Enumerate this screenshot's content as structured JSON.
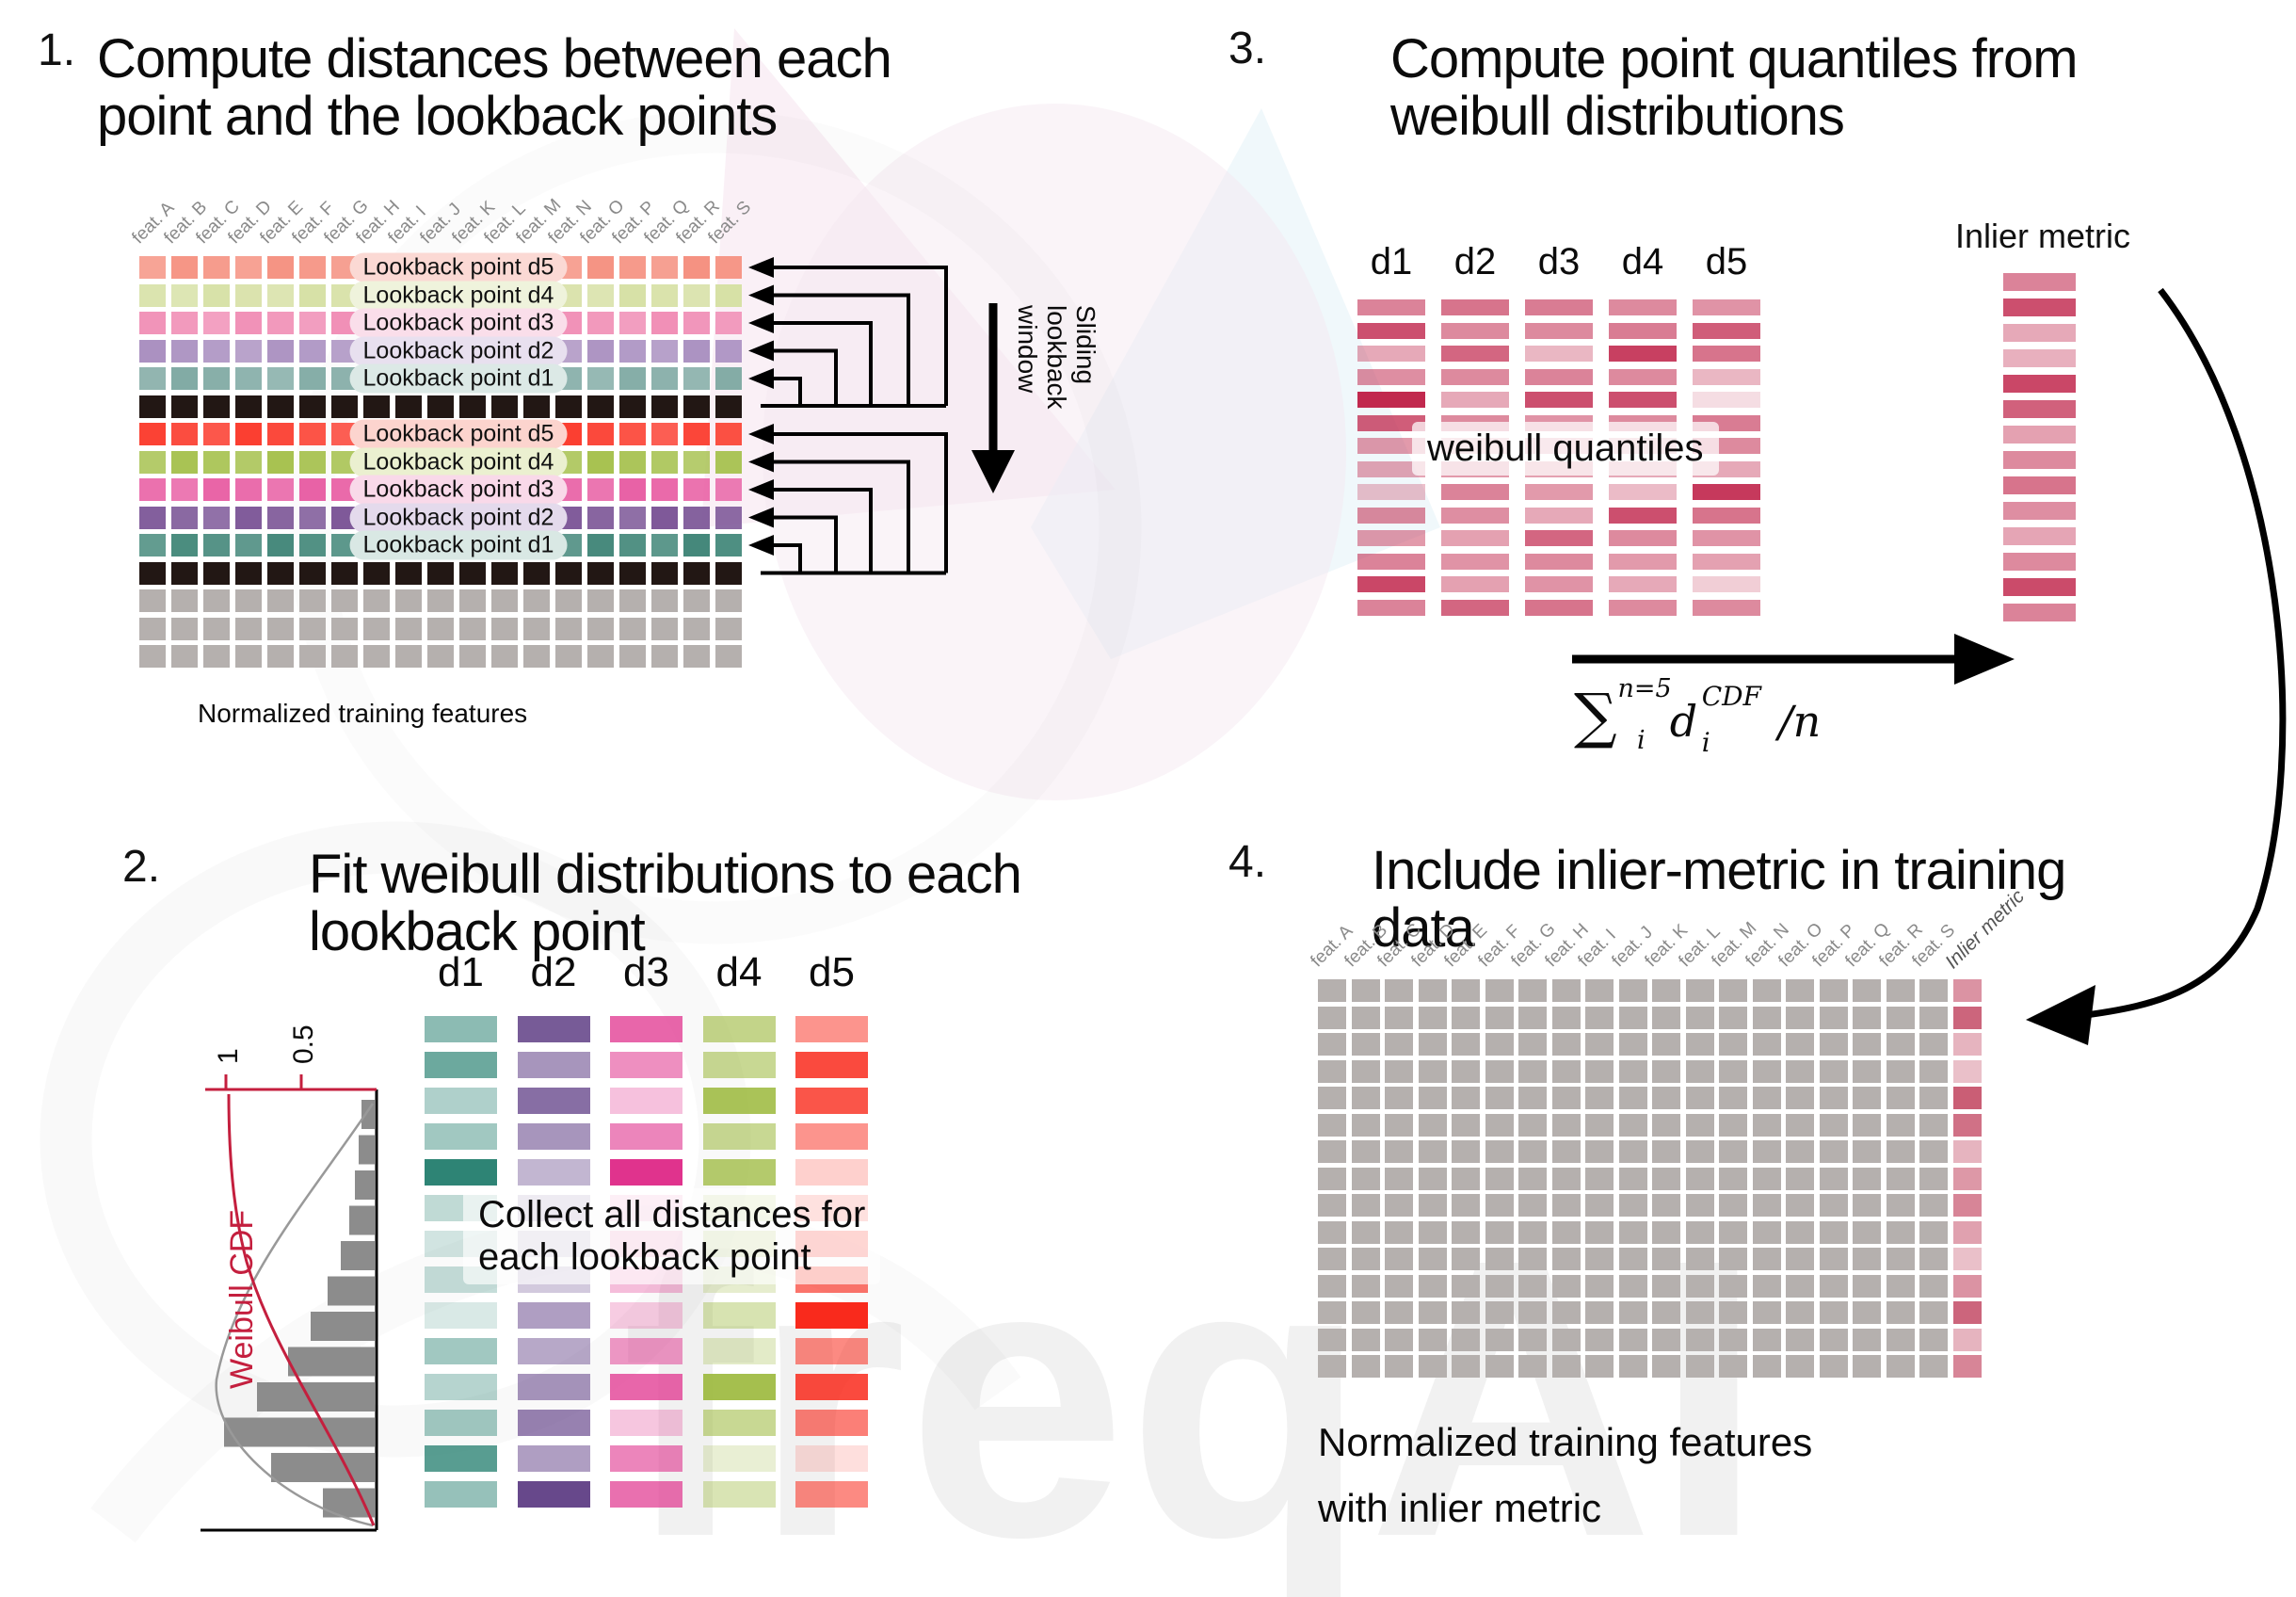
{
  "panels": {
    "p1": {
      "number": "1.",
      "title_line1": "Compute distances between each",
      "title_line2": "point and the lookback points",
      "caption": "Normalized training features",
      "sliding_line1": "Sliding",
      "sliding_line2": "lookback",
      "sliding_line3": "window"
    },
    "p2": {
      "number": "2.",
      "title_line1": "Fit weibull distributions to each",
      "title_line2": "lookback point",
      "overlay_line1": "Collect all distances for",
      "overlay_line2": "each lookback point",
      "plot": {
        "ylabel": "Weibull CDF",
        "tick_1": "1",
        "tick_05": "0.5"
      }
    },
    "p3": {
      "number": "3.",
      "title_line1": "Compute point quantiles from",
      "title_line2": "weibull distributions",
      "overlay": "weibull quantiles",
      "inlier_label": "Inlier metric",
      "formula": {
        "sum": "∑",
        "sum_sup": "n=5",
        "sum_sub": "i",
        "var": "d",
        "var_sup": "CDF",
        "var_sub": "i",
        "tail": "/n"
      }
    },
    "p4": {
      "number": "4.",
      "title_line1": "Include inlier-metric in training",
      "title_line2": "data",
      "caption_line1": "Normalized training features",
      "caption_line2": "with inlier metric",
      "inlier_label": "Inlier metric"
    }
  },
  "features": [
    "feat. A",
    "feat. B",
    "feat. C",
    "feat. D",
    "feat. E",
    "feat. F",
    "feat. G",
    "feat. H",
    "feat. I",
    "feat. J",
    "feat. K",
    "feat. L",
    "feat. M",
    "feat. N",
    "feat. O",
    "feat. P",
    "feat. Q",
    "feat. R",
    "feat. S"
  ],
  "d_labels": [
    "d1",
    "d2",
    "d3",
    "d4",
    "d5"
  ],
  "panel1_rows": [
    {
      "kind": "lookback",
      "set": "light",
      "d": "d5",
      "label": "Lookback point d5"
    },
    {
      "kind": "lookback",
      "set": "light",
      "d": "d4",
      "label": "Lookback point d4"
    },
    {
      "kind": "lookback",
      "set": "light",
      "d": "d3",
      "label": "Lookback point d3"
    },
    {
      "kind": "lookback",
      "set": "light",
      "d": "d2",
      "label": "Lookback point d2"
    },
    {
      "kind": "lookback",
      "set": "light",
      "d": "d1",
      "label": "Lookback point d1"
    },
    {
      "kind": "current"
    },
    {
      "kind": "lookback",
      "set": "strong",
      "d": "d5",
      "label": "Lookback point d5"
    },
    {
      "kind": "lookback",
      "set": "strong",
      "d": "d4",
      "label": "Lookback point d4"
    },
    {
      "kind": "lookback",
      "set": "strong",
      "d": "d3",
      "label": "Lookback point d3"
    },
    {
      "kind": "lookback",
      "set": "strong",
      "d": "d2",
      "label": "Lookback point d2"
    },
    {
      "kind": "lookback",
      "set": "strong",
      "d": "d1",
      "label": "Lookback point d1"
    },
    {
      "kind": "current"
    },
    {
      "kind": "plain"
    },
    {
      "kind": "plain"
    },
    {
      "kind": "plain"
    }
  ],
  "colors": {
    "light": {
      "d1": "#7FA9A3",
      "d2": "#A98FC0",
      "d3": "#F08CB4",
      "d4": "#D6E0A4",
      "d5": "#F5907F"
    },
    "light_tint": {
      "d1": "#DCE9E6",
      "d2": "#E8E0EF",
      "d3": "#FADEEA",
      "d4": "#EFF3DC",
      "d5": "#FBD9D4"
    },
    "strong": {
      "d1": "#418678",
      "d2": "#7C5697",
      "d3": "#E85FA4",
      "d4": "#A6C14E",
      "d5": "#FB3B2D"
    },
    "strong_tint": {
      "d1": "#D9E8E4",
      "d2": "#E4DAEC",
      "d3": "#F9D9E9",
      "d4": "#EBF0D0",
      "d5": "#FCD4CE"
    },
    "black": "#221714",
    "gray": "#B5B0AE",
    "crimson": "#BE1E45",
    "inlier_base": "#BE3A57",
    "red_accent": "#C41F3E",
    "hist_gray": "#8C8C8C",
    "feature_label_gray": "#8A8A8A",
    "panel2_base": {
      "d1": "#2E8475",
      "d2": "#5F3E85",
      "d3": "#E0338D",
      "d4": "#9BB83B",
      "d5": "#F92A1C"
    }
  },
  "panel2_bars": {
    "d1": [
      0.55,
      0.7,
      0.38,
      0.45,
      1.0,
      0.3,
      0.22,
      0.28,
      0.18,
      0.45,
      0.35,
      0.45,
      0.8,
      0.5
    ],
    "d2": [
      0.85,
      0.55,
      0.75,
      0.55,
      0.38,
      0.3,
      0.22,
      0.28,
      0.5,
      0.45,
      0.55,
      0.65,
      0.5,
      0.95
    ],
    "d3": [
      0.75,
      0.55,
      0.3,
      0.6,
      1.0,
      0.22,
      0.28,
      0.32,
      0.25,
      0.5,
      0.75,
      0.28,
      0.6,
      0.7
    ],
    "d4": [
      0.6,
      0.55,
      0.85,
      0.55,
      0.75,
      0.3,
      0.35,
      0.25,
      0.4,
      0.28,
      0.9,
      0.55,
      0.22,
      0.38
    ],
    "d5": [
      0.5,
      0.85,
      0.8,
      0.5,
      0.22,
      0.4,
      0.55,
      0.65,
      1.0,
      0.55,
      0.85,
      0.6,
      0.15,
      0.55
    ]
  },
  "panel3_bars": {
    "d1": [
      0.55,
      0.78,
      0.38,
      0.5,
      0.95,
      0.72,
      0.45,
      0.4,
      0.28,
      0.52,
      0.45,
      0.55,
      0.82,
      0.55
    ],
    "d2": [
      0.62,
      0.52,
      0.68,
      0.52,
      0.38,
      0.52,
      0.3,
      0.45,
      0.55,
      0.5,
      0.42,
      0.48,
      0.42,
      0.68
    ],
    "d3": [
      0.58,
      0.52,
      0.32,
      0.55,
      0.78,
      0.48,
      0.35,
      0.42,
      0.45,
      0.38,
      0.68,
      0.52,
      0.48,
      0.62
    ],
    "d4": [
      0.52,
      0.58,
      0.85,
      0.52,
      0.78,
      0.52,
      0.32,
      0.38,
      0.3,
      0.78,
      0.52,
      0.45,
      0.38,
      0.52
    ],
    "d5": [
      0.48,
      0.72,
      0.62,
      0.32,
      0.15,
      0.58,
      0.52,
      0.38,
      0.88,
      0.62,
      0.48,
      0.42,
      0.22,
      0.52
    ]
  },
  "panel3_inlier_bars": [
    0.55,
    0.78,
    0.38,
    0.35,
    0.82,
    0.7,
    0.42,
    0.52,
    0.62,
    0.5,
    0.4,
    0.52,
    0.8,
    0.55
  ],
  "panel4_inlier": [
    0.55,
    0.78,
    0.38,
    0.32,
    0.82,
    0.72,
    0.38,
    0.52,
    0.62,
    0.48,
    0.32,
    0.55,
    0.78,
    0.38,
    0.62
  ],
  "weibull_hist": [
    14,
    17,
    21,
    27,
    36,
    50,
    68,
    92,
    125,
    160,
    110,
    55
  ],
  "watermark": {
    "text": "freqAI"
  }
}
